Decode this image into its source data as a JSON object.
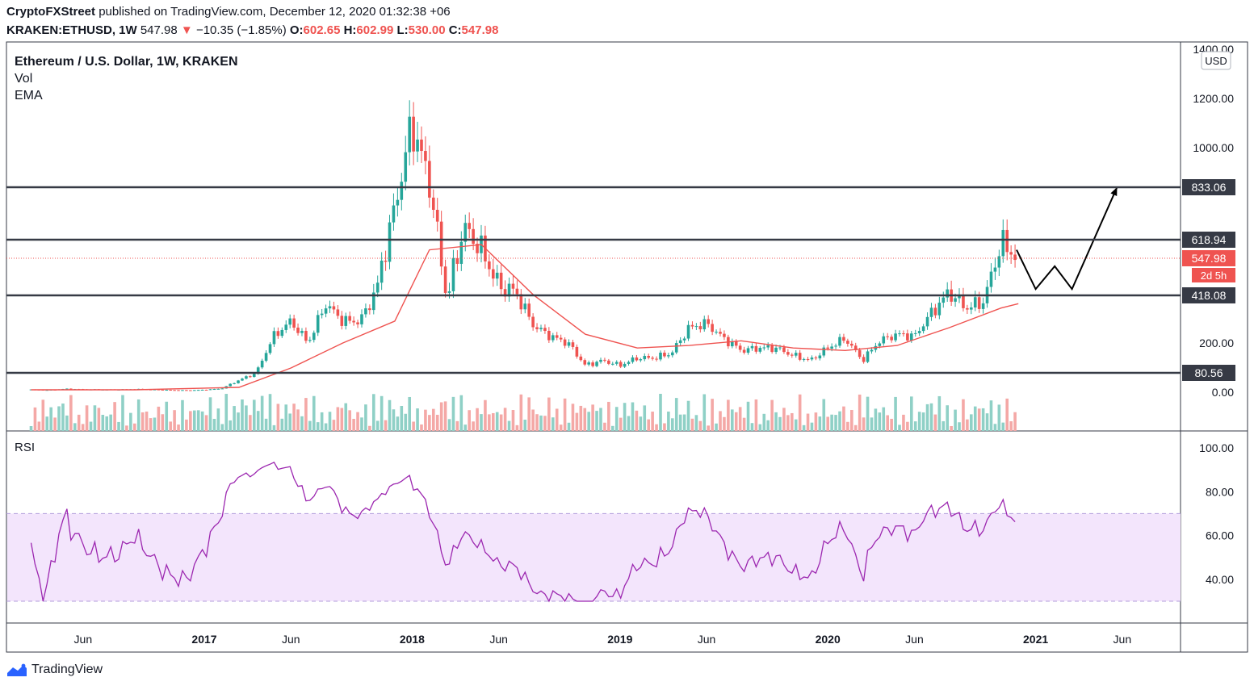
{
  "header": {
    "publisher": "CryptoFXStreet",
    "published_text": "published on TradingView.com, December 12, 2020 01:32:38 +06",
    "symbol": "KRAKEN:ETHUSD, 1W",
    "last": "547.98",
    "change": "−10.35 (−1.85%)",
    "open": "602.65",
    "high": "602.99",
    "low": "530.00",
    "close": "547.98",
    "labels": {
      "o": "O:",
      "h": "H:",
      "l": "L:",
      "c": "C:"
    }
  },
  "legend": {
    "title": "Ethereum / U.S. Dollar, 1W, KRAKEN",
    "vol": "Vol",
    "ema": "EMA"
  },
  "rsi_label": "RSI",
  "price_axis": {
    "currency": "USD",
    "ticks": [
      "0.00",
      "200.00",
      "1000.00",
      "1200.00",
      "1400.00"
    ]
  },
  "levels": [
    {
      "label": "833.06",
      "value": 833.06
    },
    {
      "label": "618.94",
      "value": 618.94
    },
    {
      "label": "418.08",
      "value": 418.08
    },
    {
      "label": "80.56",
      "value": 80.56
    }
  ],
  "last_price_label": "547.98",
  "countdown": "2d 5h",
  "rsi_axis_ticks": [
    "40.00",
    "60.00",
    "80.00",
    "100.00"
  ],
  "time_axis": [
    "Jun",
    "2017",
    "Jun",
    "2018",
    "Jun",
    "2019",
    "Jun",
    "2020",
    "Jun",
    "2021",
    "Jun"
  ],
  "footer": {
    "brand": "TradingView"
  },
  "colors": {
    "up": "#26a69a",
    "down": "#ef5350",
    "ema": "#ef5350",
    "rsi": "#9c27b0",
    "rsi_band": "#f3e5fc",
    "level": "#363a45",
    "vol_up": "#8fd0c6",
    "vol_down": "#f4a8a6"
  },
  "chart_data": {
    "type": "candlestick",
    "title": "Ethereum / U.S. Dollar, 1W, KRAKEN",
    "indicators": [
      "Vol",
      "EMA",
      "RSI"
    ],
    "price_ylim": [
      0,
      1400
    ],
    "rsi_ylim": [
      30,
      100
    ],
    "rsi_band": [
      30,
      70
    ],
    "horizontal_levels": [
      833.06,
      618.94,
      418.08,
      80.56
    ],
    "last_close": 547.98,
    "series": [
      {
        "name": "price_close_monthly",
        "x": [
          "2016-03",
          "2016-04",
          "2016-05",
          "2016-06",
          "2016-07",
          "2016-08",
          "2016-09",
          "2016-10",
          "2016-11",
          "2016-12",
          "2017-01",
          "2017-02",
          "2017-03",
          "2017-04",
          "2017-05",
          "2017-06",
          "2017-07",
          "2017-08",
          "2017-09",
          "2017-10",
          "2017-11",
          "2017-12",
          "2018-01",
          "2018-02",
          "2018-03",
          "2018-04",
          "2018-05",
          "2018-06",
          "2018-07",
          "2018-08",
          "2018-09",
          "2018-10",
          "2018-11",
          "2018-12",
          "2019-01",
          "2019-02",
          "2019-03",
          "2019-04",
          "2019-05",
          "2019-06",
          "2019-07",
          "2019-08",
          "2019-09",
          "2019-10",
          "2019-11",
          "2019-12",
          "2020-01",
          "2020-02",
          "2020-03",
          "2020-04",
          "2020-05",
          "2020-06",
          "2020-07",
          "2020-08",
          "2020-09",
          "2020-10",
          "2020-11",
          "2020-12"
        ],
        "values": [
          11,
          9,
          14,
          12,
          11,
          11,
          13,
          11,
          9,
          8,
          10,
          15,
          50,
          80,
          230,
          300,
          200,
          380,
          300,
          300,
          450,
          750,
          1100,
          850,
          400,
          670,
          580,
          450,
          430,
          280,
          230,
          200,
          110,
          130,
          110,
          140,
          140,
          160,
          270,
          290,
          220,
          170,
          180,
          180,
          150,
          130,
          180,
          220,
          130,
          210,
          240,
          230,
          340,
          430,
          360,
          390,
          610,
          548
        ]
      },
      {
        "name": "EMA",
        "x": [
          "2016-03",
          "2016-09",
          "2017-03",
          "2017-06",
          "2017-09",
          "2017-12",
          "2018-02",
          "2018-05",
          "2018-08",
          "2018-11",
          "2019-02",
          "2019-05",
          "2019-08",
          "2019-11",
          "2020-02",
          "2020-05",
          "2020-08",
          "2020-11",
          "2020-12"
        ],
        "values": [
          10,
          10,
          20,
          100,
          200,
          300,
          580,
          600,
          420,
          240,
          180,
          190,
          210,
          180,
          170,
          190,
          270,
          360,
          380
        ]
      }
    ]
  }
}
